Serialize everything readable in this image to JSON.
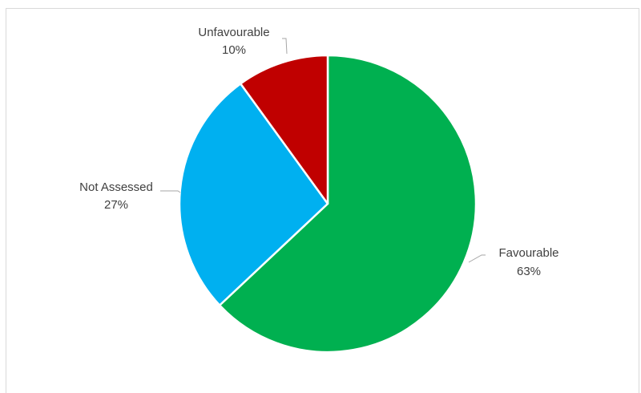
{
  "chart_data": {
    "type": "pie",
    "title": "",
    "slices": [
      {
        "label": "Favourable",
        "value": 63,
        "value_label": "63%",
        "color": "#00b050"
      },
      {
        "label": "Not Assessed",
        "value": 27,
        "value_label": "27%",
        "color": "#00b0f0"
      },
      {
        "label": "Unfavourable",
        "value": 10,
        "value_label": "10%",
        "color": "#c00000"
      }
    ],
    "legend": "none",
    "data_labels": "outside with leader lines"
  }
}
